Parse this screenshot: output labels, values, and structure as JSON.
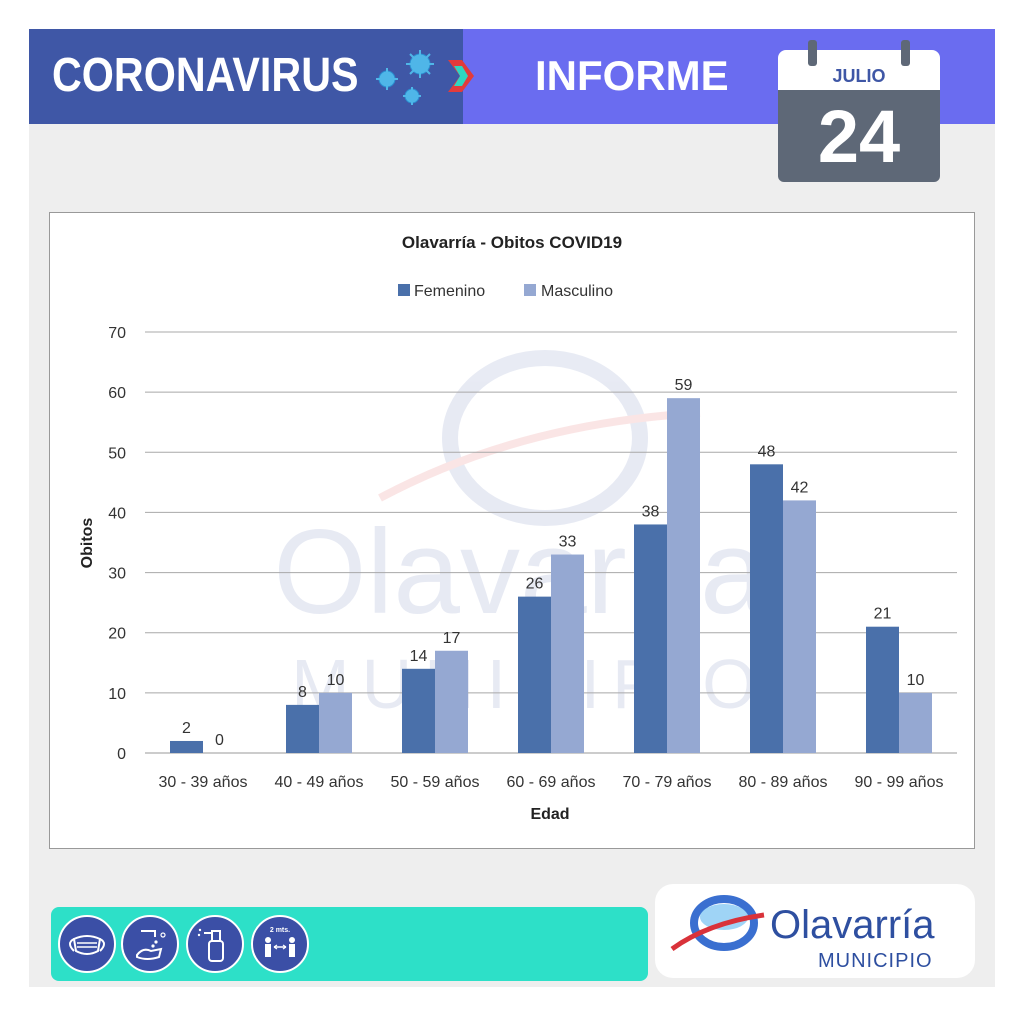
{
  "header": {
    "title": "CORONAVIRUS",
    "subtitle": "INFORME",
    "calendar": {
      "month": "JULIO",
      "day": "24"
    }
  },
  "colors": {
    "header_left": "#3f57a6",
    "header_right": "#6a6cf0",
    "femenino": "#4a70aa",
    "masculino": "#95a8d2",
    "icon_bar": "#2de0c8"
  },
  "chart_data": {
    "type": "bar",
    "title": "Olavarría - Obitos COVID19",
    "xlabel": "Edad",
    "ylabel": "Obitos",
    "categories": [
      "30 - 39 años",
      "40 - 49 años",
      "50 - 59 años",
      "60 - 69 años",
      "70 - 79 años",
      "80 - 89 años",
      "90 - 99 años"
    ],
    "series": [
      {
        "name": "Femenino",
        "values": [
          2,
          8,
          14,
          26,
          38,
          48,
          21
        ]
      },
      {
        "name": "Masculino",
        "values": [
          0,
          10,
          17,
          33,
          59,
          42,
          10
        ]
      }
    ],
    "ylim": [
      0,
      70
    ],
    "yticks": [
      0,
      10,
      20,
      30,
      40,
      50,
      60,
      70
    ],
    "grid": true,
    "legend": "top"
  },
  "watermark": {
    "name": "Olavarría",
    "sub": "MUNICIPIO"
  },
  "footer": {
    "icons": [
      "face-mask-icon",
      "hand-washing-icon",
      "sanitizer-spray-icon",
      "social-distance-icon"
    ],
    "distance_label": "2 mts.",
    "logo_name": "Olavarría",
    "logo_sub": "MUNICIPIO"
  }
}
